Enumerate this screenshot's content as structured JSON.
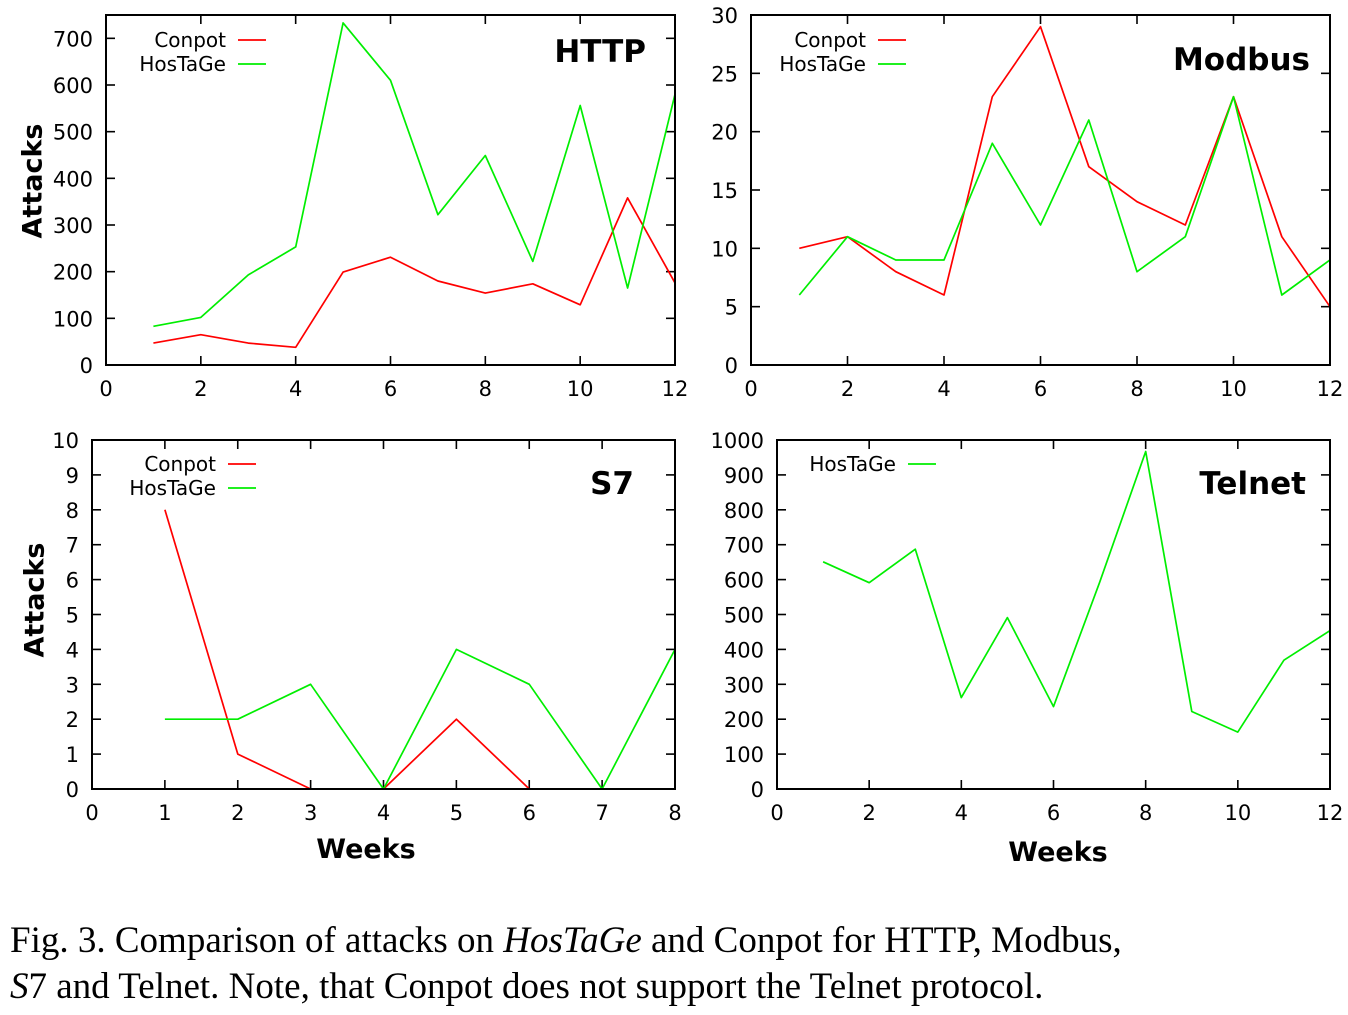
{
  "caption": {
    "prefix": "Fig. 3.  Comparison of attacks on ",
    "hostage_italic": "HosTaGe",
    "middle": " and Conpot for HTTP, Modbus,",
    "s_italic": "S",
    "suffix": "7 and Telnet. Note, that Conpot does not support the Telnet protocol."
  },
  "colors": {
    "conpot": "#ff0000",
    "hostage": "#00ee00",
    "axis": "#000000"
  },
  "chart_data": [
    {
      "id": "http",
      "type": "line",
      "title": "HTTP",
      "xlabel": "",
      "ylabel": "Attacks",
      "xlim": [
        0,
        12
      ],
      "ylim": [
        0,
        750
      ],
      "xticks": [
        0,
        2,
        4,
        6,
        8,
        10,
        12
      ],
      "yticks": [
        0,
        100,
        200,
        300,
        400,
        500,
        600,
        700
      ],
      "legend_position": "top-left",
      "series": [
        {
          "name": "Conpot",
          "color": "#ff0000",
          "x": [
            1,
            2,
            3,
            4,
            5,
            6,
            7,
            8,
            9,
            10,
            11,
            12
          ],
          "y": [
            47,
            65,
            47,
            38,
            199,
            231,
            180,
            154,
            174,
            129,
            358,
            176
          ]
        },
        {
          "name": "HosTaGe",
          "color": "#00ee00",
          "x": [
            1,
            2,
            3,
            4,
            5,
            6,
            7,
            8,
            9,
            10,
            11,
            12
          ],
          "y": [
            83,
            102,
            193,
            253,
            733,
            610,
            322,
            449,
            222,
            556,
            165,
            580
          ]
        }
      ]
    },
    {
      "id": "modbus",
      "type": "line",
      "title": "Modbus",
      "xlabel": "",
      "ylabel": "",
      "xlim": [
        0,
        12
      ],
      "ylim": [
        0,
        30
      ],
      "xticks": [
        0,
        2,
        4,
        6,
        8,
        10,
        12
      ],
      "yticks": [
        0,
        5,
        10,
        15,
        20,
        25,
        30
      ],
      "legend_position": "top-left",
      "series": [
        {
          "name": "Conpot",
          "color": "#ff0000",
          "x": [
            1,
            2,
            3,
            4,
            5,
            6,
            7,
            8,
            9,
            10,
            11,
            12
          ],
          "y": [
            10,
            11,
            8,
            6,
            23,
            29,
            17,
            14,
            12,
            23,
            11,
            5
          ]
        },
        {
          "name": "HosTaGe",
          "color": "#00ee00",
          "x": [
            1,
            2,
            3,
            4,
            5,
            6,
            7,
            8,
            9,
            10,
            11,
            12
          ],
          "y": [
            6,
            11,
            9,
            9,
            19,
            12,
            21,
            8,
            11,
            23,
            6,
            9
          ]
        }
      ]
    },
    {
      "id": "s7",
      "type": "line",
      "title": "S7",
      "xlabel": "Weeks",
      "ylabel": "Attacks",
      "xlim": [
        0,
        8
      ],
      "ylim": [
        0,
        10
      ],
      "xticks": [
        0,
        1,
        2,
        3,
        4,
        5,
        6,
        7,
        8
      ],
      "yticks": [
        0,
        1,
        2,
        3,
        4,
        5,
        6,
        7,
        8,
        9,
        10
      ],
      "legend_position": "top-left",
      "series": [
        {
          "name": "Conpot",
          "color": "#ff0000",
          "x": [
            1,
            2,
            3,
            4,
            5,
            6
          ],
          "y": [
            8,
            1,
            0,
            0,
            2,
            0
          ]
        },
        {
          "name": "HosTaGe",
          "color": "#00ee00",
          "x": [
            1,
            2,
            3,
            4,
            5,
            6,
            7,
            8
          ],
          "y": [
            2,
            2,
            3,
            0,
            4,
            3,
            0,
            4
          ]
        }
      ]
    },
    {
      "id": "telnet",
      "type": "line",
      "title": "Telnet",
      "xlabel": "Weeks",
      "ylabel": "",
      "xlim": [
        0,
        12
      ],
      "ylim": [
        0,
        1000
      ],
      "xticks": [
        0,
        2,
        4,
        6,
        8,
        10,
        12
      ],
      "yticks": [
        0,
        100,
        200,
        300,
        400,
        500,
        600,
        700,
        800,
        900,
        1000
      ],
      "legend_position": "top-left",
      "series": [
        {
          "name": "HosTaGe",
          "color": "#00ee00",
          "x": [
            1,
            2,
            3,
            4,
            5,
            6,
            7,
            8,
            9,
            10,
            11,
            12
          ],
          "y": [
            651,
            591,
            687,
            262,
            491,
            236,
            592,
            967,
            222,
            163,
            369,
            454
          ]
        }
      ]
    }
  ]
}
